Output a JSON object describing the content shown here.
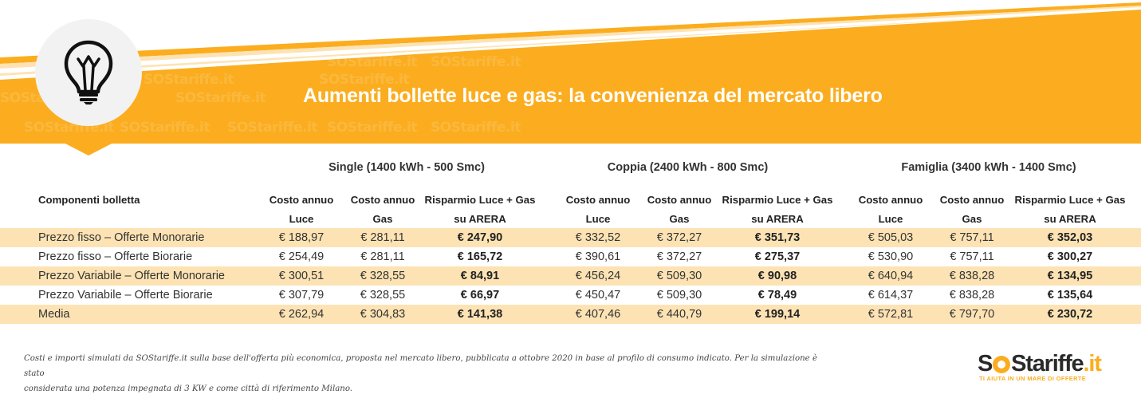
{
  "banner": {
    "title": "Aumenti bollette luce e gas: la convenienza del mercato libero",
    "watermark": "SOStariffe.it",
    "icon": "lightbulb-icon",
    "accent_color": "#fbad1f"
  },
  "table": {
    "row_header": "Componenti bolletta",
    "groups": [
      {
        "label": "Single (1400 kWh - 500 Smc)"
      },
      {
        "label": "Coppia (2400 kWh - 800 Smc)"
      },
      {
        "label": "Famiglia (3400 kWh - 1400 Smc)"
      }
    ],
    "subheaders": [
      {
        "line1": "Costo annuo",
        "line2": "Luce"
      },
      {
        "line1": "Costo annuo",
        "line2": "Gas"
      },
      {
        "line1": "Risparmio Luce + Gas",
        "line2": "su ARERA"
      }
    ],
    "rows": [
      {
        "label": "Prezzo fisso – Offerte Monorarie",
        "values": [
          "€ 188,97",
          "€ 281,11",
          "€ 247,90",
          "€ 332,52",
          "€ 372,27",
          "€ 351,73",
          "€ 505,03",
          "€ 757,11",
          "€ 352,03"
        ]
      },
      {
        "label": "Prezzo fisso – Offerte Biorarie",
        "values": [
          "€ 254,49",
          "€ 281,11",
          "€ 165,72",
          "€ 390,61",
          "€ 372,27",
          "€ 275,37",
          "€ 530,90",
          "€ 757,11",
          "€ 300,27"
        ]
      },
      {
        "label": "Prezzo Variabile – Offerte Monorarie",
        "values": [
          "€ 300,51",
          "€ 328,55",
          "€ 84,91",
          "€ 456,24",
          "€ 509,30",
          "€ 90,98",
          "€ 640,94",
          "€ 838,28",
          "€ 134,95"
        ]
      },
      {
        "label": "Prezzo Variabile – Offerte Biorarie",
        "values": [
          "€ 307,79",
          "€ 328,55",
          "€ 66,97",
          "€ 450,47",
          "€ 509,30",
          "€ 78,49",
          "€ 614,37",
          "€ 838,28",
          "€ 135,64"
        ]
      },
      {
        "label": "Media",
        "values": [
          "€ 262,94",
          "€ 304,83",
          "€ 141,38",
          "€ 407,46",
          "€ 440,79",
          "€ 199,14",
          "€ 572,81",
          "€ 797,70",
          "€ 230,72"
        ]
      }
    ]
  },
  "footnote": {
    "line1": "Costi e importi simulati da SOStariffe.it sulla base dell'offerta più economica, proposta nel mercato libero, pubblicata a ottobre 2020 in base al profilo di consumo indicato. Per la simulazione è stato",
    "line2": "considerata una potenza impegnata di 3 KW e come città di riferimento Milano."
  },
  "logo": {
    "part1": "S",
    "part2": "Stariffe",
    "part3": ".it",
    "tagline": "TI AIUTA IN UN MARE DI OFFERTE"
  }
}
